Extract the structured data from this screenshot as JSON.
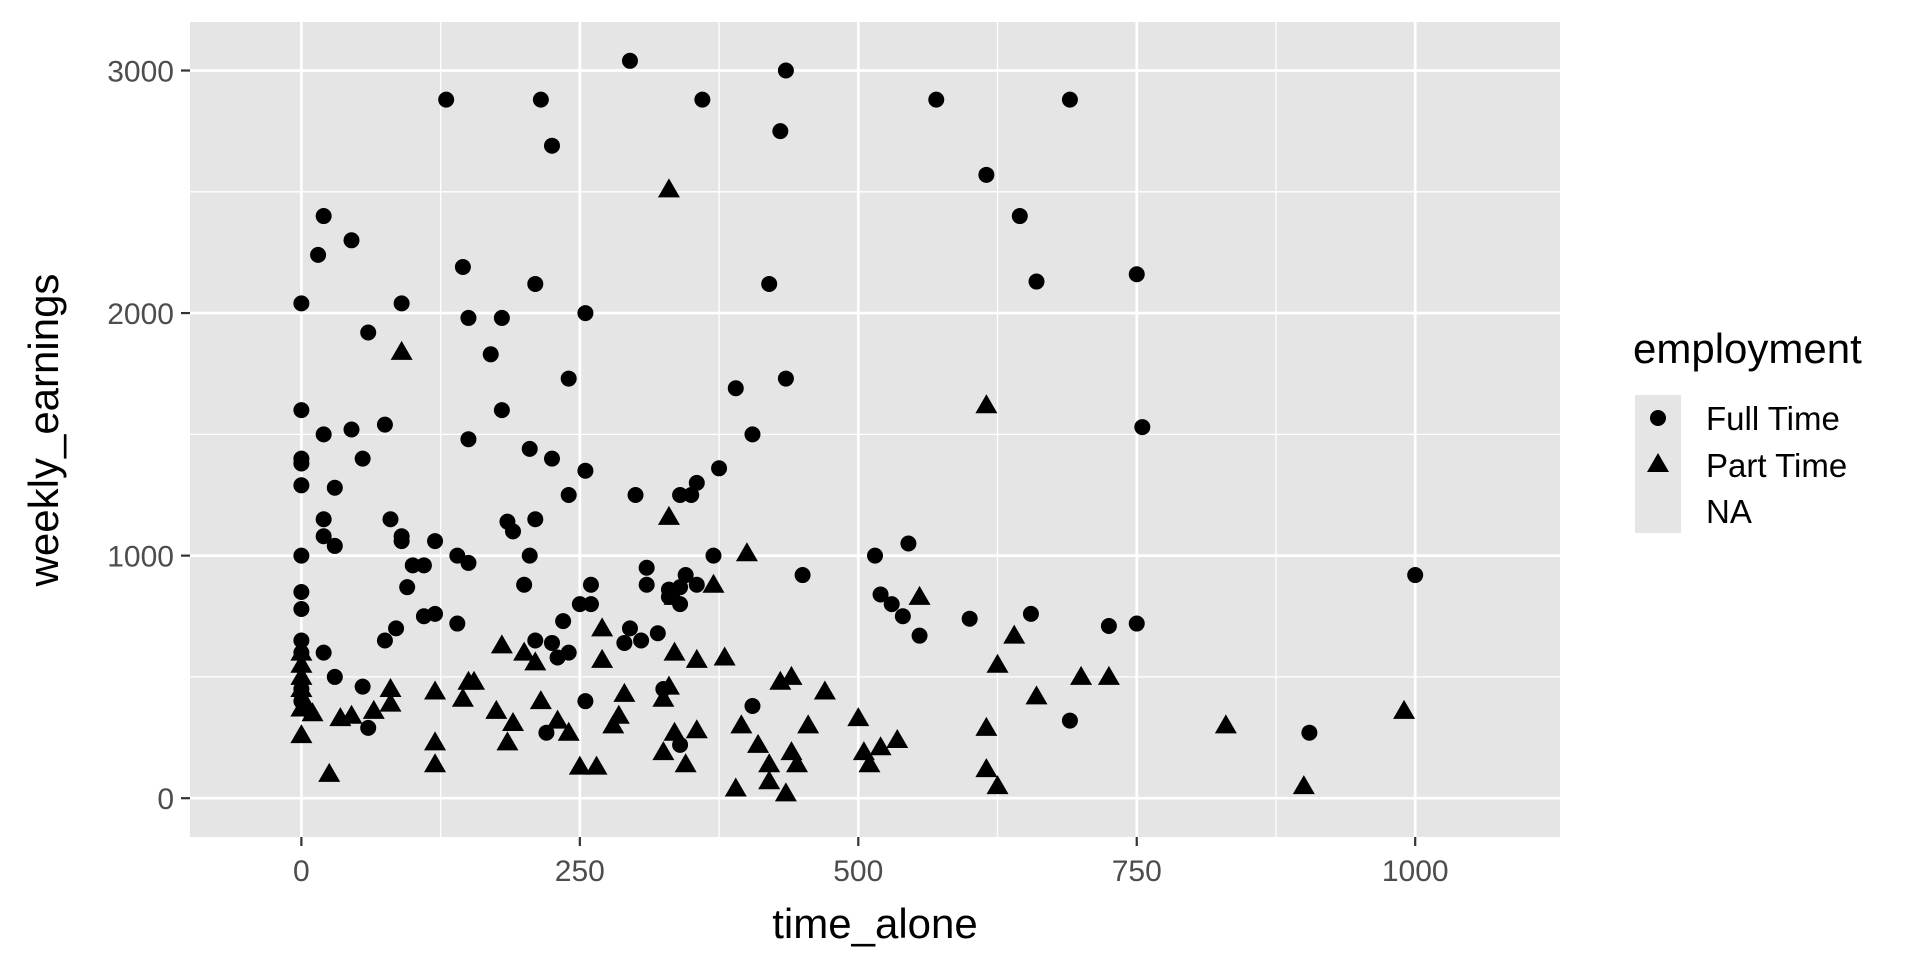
{
  "chart_data": {
    "type": "scatter",
    "xlabel": "time_alone",
    "ylabel": "weekly_earnings",
    "xlim": [
      -100,
      1130
    ],
    "ylim": [
      -160,
      3200
    ],
    "x_ticks": [
      0,
      250,
      500,
      750,
      1000
    ],
    "y_ticks": [
      0,
      1000,
      2000,
      3000
    ],
    "x_tick_labels": [
      "0",
      "250",
      "500",
      "750",
      "1000"
    ],
    "y_tick_labels": [
      "0",
      "1000",
      "2000",
      "3000"
    ],
    "grid": true,
    "legend": {
      "title": "employment",
      "position": "right",
      "entries": [
        {
          "label": "Full Time",
          "shape": "circle"
        },
        {
          "label": "Part Time",
          "shape": "triangle"
        },
        {
          "label": "NA",
          "shape": "none"
        }
      ]
    },
    "colors": {
      "panel": "#e5e5e5",
      "grid": "#ffffff",
      "point": "#000000",
      "tick_text": "#4d4d4d",
      "legend_key": "#e5e5e5"
    },
    "series": [
      {
        "name": "Full Time",
        "shape": "circle",
        "points": [
          [
            295,
            3040
          ],
          [
            435,
            3000
          ],
          [
            130,
            2880
          ],
          [
            215,
            2880
          ],
          [
            360,
            2880
          ],
          [
            570,
            2880
          ],
          [
            690,
            2880
          ],
          [
            430,
            2750
          ],
          [
            225,
            2690
          ],
          [
            615,
            2570
          ],
          [
            20,
            2400
          ],
          [
            645,
            2400
          ],
          [
            45,
            2300
          ],
          [
            15,
            2240
          ],
          [
            145,
            2190
          ],
          [
            750,
            2160
          ],
          [
            210,
            2120
          ],
          [
            420,
            2120
          ],
          [
            660,
            2130
          ],
          [
            0,
            2040
          ],
          [
            90,
            2040
          ],
          [
            255,
            2000
          ],
          [
            150,
            1980
          ],
          [
            180,
            1980
          ],
          [
            60,
            1920
          ],
          [
            170,
            1830
          ],
          [
            240,
            1730
          ],
          [
            435,
            1730
          ],
          [
            390,
            1690
          ],
          [
            0,
            1600
          ],
          [
            180,
            1600
          ],
          [
            755,
            1530
          ],
          [
            75,
            1540
          ],
          [
            20,
            1500
          ],
          [
            45,
            1520
          ],
          [
            405,
            1500
          ],
          [
            150,
            1480
          ],
          [
            205,
            1440
          ],
          [
            0,
            1400
          ],
          [
            0,
            1380
          ],
          [
            55,
            1400
          ],
          [
            225,
            1400
          ],
          [
            255,
            1350
          ],
          [
            375,
            1360
          ],
          [
            0,
            1290
          ],
          [
            30,
            1280
          ],
          [
            355,
            1300
          ],
          [
            240,
            1250
          ],
          [
            300,
            1250
          ],
          [
            340,
            1250
          ],
          [
            350,
            1250
          ],
          [
            20,
            1150
          ],
          [
            80,
            1150
          ],
          [
            185,
            1140
          ],
          [
            210,
            1150
          ],
          [
            20,
            1080
          ],
          [
            90,
            1080
          ],
          [
            190,
            1100
          ],
          [
            90,
            1060
          ],
          [
            120,
            1060
          ],
          [
            30,
            1040
          ],
          [
            545,
            1050
          ],
          [
            140,
            1000
          ],
          [
            205,
            1000
          ],
          [
            0,
            1000
          ],
          [
            370,
            1000
          ],
          [
            515,
            1000
          ],
          [
            150,
            970
          ],
          [
            100,
            960
          ],
          [
            110,
            960
          ],
          [
            310,
            950
          ],
          [
            450,
            920
          ],
          [
            345,
            920
          ],
          [
            1000,
            920
          ],
          [
            260,
            880
          ],
          [
            310,
            880
          ],
          [
            200,
            880
          ],
          [
            95,
            870
          ],
          [
            0,
            850
          ],
          [
            330,
            860
          ],
          [
            340,
            870
          ],
          [
            520,
            840
          ],
          [
            355,
            880
          ],
          [
            340,
            800
          ],
          [
            0,
            780
          ],
          [
            250,
            800
          ],
          [
            260,
            800
          ],
          [
            530,
            800
          ],
          [
            330,
            830
          ],
          [
            120,
            760
          ],
          [
            110,
            750
          ],
          [
            540,
            750
          ],
          [
            600,
            740
          ],
          [
            655,
            760
          ],
          [
            235,
            730
          ],
          [
            140,
            720
          ],
          [
            725,
            710
          ],
          [
            750,
            720
          ],
          [
            85,
            700
          ],
          [
            295,
            700
          ],
          [
            320,
            680
          ],
          [
            555,
            670
          ],
          [
            0,
            650
          ],
          [
            75,
            650
          ],
          [
            210,
            650
          ],
          [
            225,
            640
          ],
          [
            290,
            640
          ],
          [
            305,
            650
          ],
          [
            230,
            580
          ],
          [
            20,
            600
          ],
          [
            240,
            600
          ],
          [
            0,
            600
          ],
          [
            30,
            500
          ],
          [
            55,
            460
          ],
          [
            0,
            450
          ],
          [
            325,
            450
          ],
          [
            0,
            400
          ],
          [
            255,
            400
          ],
          [
            405,
            380
          ],
          [
            60,
            290
          ],
          [
            220,
            270
          ],
          [
            690,
            320
          ],
          [
            905,
            270
          ],
          [
            340,
            220
          ]
        ]
      },
      {
        "name": "Part Time",
        "shape": "triangle",
        "points": [
          [
            330,
            2510
          ],
          [
            90,
            1840
          ],
          [
            615,
            1620
          ],
          [
            330,
            1160
          ],
          [
            400,
            1010
          ],
          [
            370,
            880
          ],
          [
            555,
            830
          ],
          [
            335,
            830
          ],
          [
            640,
            670
          ],
          [
            270,
            700
          ],
          [
            180,
            630
          ],
          [
            200,
            600
          ],
          [
            335,
            600
          ],
          [
            380,
            580
          ],
          [
            210,
            560
          ],
          [
            270,
            570
          ],
          [
            355,
            570
          ],
          [
            625,
            550
          ],
          [
            0,
            600
          ],
          [
            0,
            550
          ],
          [
            0,
            500
          ],
          [
            700,
            500
          ],
          [
            725,
            500
          ],
          [
            440,
            500
          ],
          [
            430,
            480
          ],
          [
            155,
            480
          ],
          [
            150,
            480
          ],
          [
            470,
            440
          ],
          [
            0,
            450
          ],
          [
            80,
            450
          ],
          [
            120,
            440
          ],
          [
            330,
            460
          ],
          [
            290,
            430
          ],
          [
            660,
            420
          ],
          [
            145,
            410
          ],
          [
            215,
            400
          ],
          [
            80,
            390
          ],
          [
            5,
            380
          ],
          [
            10,
            350
          ],
          [
            65,
            360
          ],
          [
            175,
            360
          ],
          [
            325,
            410
          ],
          [
            0,
            370
          ],
          [
            35,
            330
          ],
          [
            45,
            340
          ],
          [
            230,
            320
          ],
          [
            285,
            340
          ],
          [
            190,
            310
          ],
          [
            280,
            300
          ],
          [
            395,
            300
          ],
          [
            455,
            300
          ],
          [
            500,
            330
          ],
          [
            830,
            300
          ],
          [
            615,
            290
          ],
          [
            0,
            260
          ],
          [
            240,
            270
          ],
          [
            335,
            270
          ],
          [
            355,
            280
          ],
          [
            120,
            230
          ],
          [
            185,
            230
          ],
          [
            410,
            220
          ],
          [
            325,
            190
          ],
          [
            440,
            190
          ],
          [
            505,
            190
          ],
          [
            520,
            210
          ],
          [
            535,
            240
          ],
          [
            120,
            140
          ],
          [
            250,
            130
          ],
          [
            265,
            130
          ],
          [
            345,
            140
          ],
          [
            420,
            140
          ],
          [
            445,
            140
          ],
          [
            510,
            140
          ],
          [
            615,
            120
          ],
          [
            990,
            360
          ],
          [
            25,
            100
          ],
          [
            390,
            40
          ],
          [
            420,
            70
          ],
          [
            435,
            20
          ],
          [
            625,
            50
          ],
          [
            900,
            50
          ]
        ]
      }
    ]
  }
}
